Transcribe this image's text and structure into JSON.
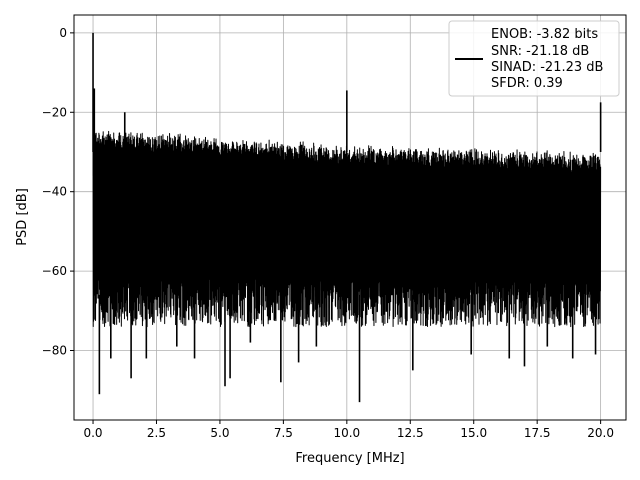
{
  "chart_data": {
    "type": "line",
    "title": "",
    "xlabel": "Frequency [MHz]",
    "ylabel": "PSD [dB]",
    "xlim": [
      -0.75,
      21.0
    ],
    "ylim": [
      -97.5,
      4.5
    ],
    "xticks": [
      0.0,
      2.5,
      5.0,
      7.5,
      10.0,
      12.5,
      15.0,
      17.5,
      20.0
    ],
    "xtick_labels": [
      "0.0",
      "2.5",
      "5.0",
      "7.5",
      "10.0",
      "12.5",
      "15.0",
      "17.5",
      "20.0"
    ],
    "yticks": [
      0,
      -20,
      -40,
      -60,
      -80
    ],
    "ytick_labels": [
      "0",
      "−20",
      "−40",
      "−60",
      "−80"
    ],
    "grid": true,
    "legend_position": "top-right",
    "legend_lines": [
      "ENOB: -3.82 bits",
      "SNR: -21.18 dB",
      "SINAD: -21.23 dB",
      "SFDR: 0.39"
    ],
    "series": [
      {
        "color": "#000000",
        "noise_top_dB": [
          [
            0.2,
            -24
          ],
          [
            5.0,
            -26
          ],
          [
            10.0,
            -28
          ],
          [
            15.0,
            -29
          ],
          [
            20.0,
            -30
          ]
        ],
        "noise_bottom_dB": -68,
        "spikes": [
          {
            "x": 0.0,
            "y": 0
          },
          {
            "x": 0.05,
            "y": -14
          },
          {
            "x": 1.25,
            "y": -20
          },
          {
            "x": 10.0,
            "y": -14.5
          },
          {
            "x": 20.0,
            "y": -17.5
          }
        ],
        "dips": [
          {
            "x": 0.25,
            "y": -91
          },
          {
            "x": 0.7,
            "y": -82
          },
          {
            "x": 1.5,
            "y": -87
          },
          {
            "x": 2.1,
            "y": -82
          },
          {
            "x": 3.3,
            "y": -79
          },
          {
            "x": 4.0,
            "y": -82
          },
          {
            "x": 5.2,
            "y": -89
          },
          {
            "x": 5.4,
            "y": -87
          },
          {
            "x": 6.2,
            "y": -78
          },
          {
            "x": 7.4,
            "y": -88
          },
          {
            "x": 8.1,
            "y": -83
          },
          {
            "x": 8.8,
            "y": -79
          },
          {
            "x": 10.5,
            "y": -93
          },
          {
            "x": 12.6,
            "y": -85
          },
          {
            "x": 14.9,
            "y": -81
          },
          {
            "x": 16.4,
            "y": -82
          },
          {
            "x": 17.0,
            "y": -84
          },
          {
            "x": 17.9,
            "y": -79
          },
          {
            "x": 18.9,
            "y": -82
          },
          {
            "x": 19.8,
            "y": -81
          }
        ]
      }
    ]
  }
}
